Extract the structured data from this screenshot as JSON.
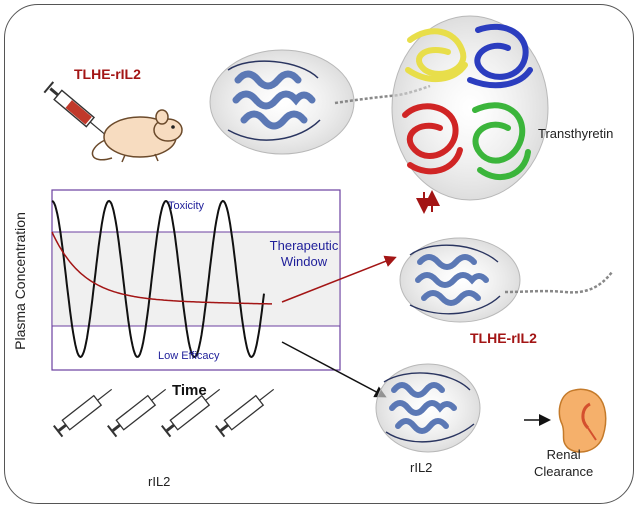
{
  "labels": {
    "tlhe_top": "TLHE-rIL2",
    "transthyretin": "Transthyretin",
    "tlhe_mid": "TLHE-rIL2",
    "ril2_protein": "rIL2",
    "renal_clearance": "Renal\nClearance",
    "ril2_syringes": "rIL2"
  },
  "graph": {
    "ylabel": "Plasma Concentration",
    "xlabel": "Time",
    "toxicity": "Toxicity",
    "low_efficacy": "Low Efficacy",
    "therapeutic_window": "Therapeutic\nWindow"
  },
  "colors": {
    "accent_red": "#a31515",
    "window_fill": "#f0f0f0",
    "frame_purple": "#6b3fa0",
    "label_blue": "#1f1f9a",
    "protein_blue": "#5b78b5",
    "ttr_yellow": "#e8de4a",
    "ttr_blue": "#2b3dbf",
    "ttr_red": "#d02525",
    "ttr_green": "#3bb53b"
  },
  "icons": [
    "syringe-icon",
    "mouse-icon",
    "kidney-icon"
  ]
}
